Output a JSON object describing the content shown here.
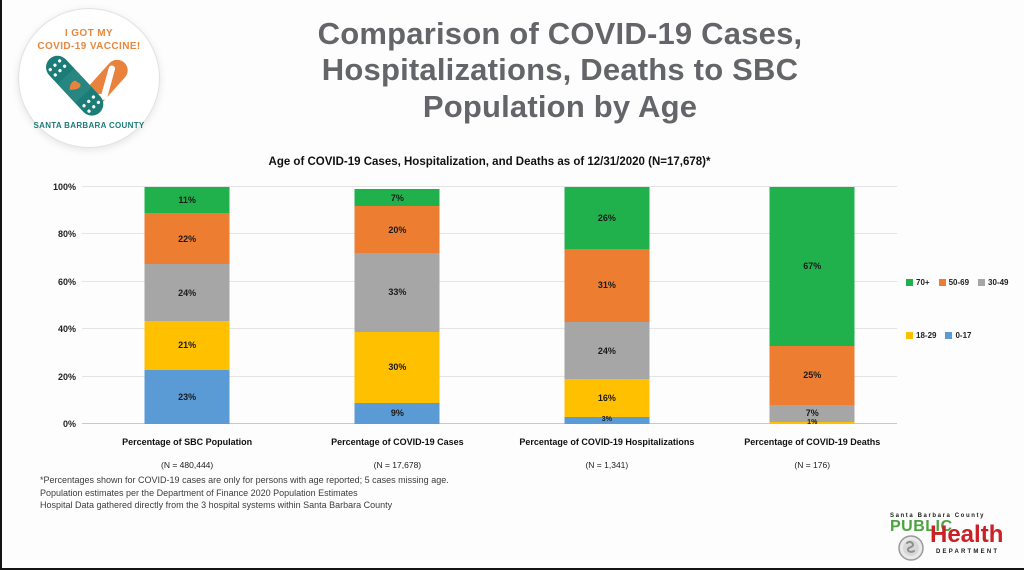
{
  "badge": {
    "top_text": "I GOT MY\nCOVID-19 VACCINE!",
    "bottom_text": "SANTA BARBARA COUNTY",
    "teal_color": "#1c7c77",
    "orange_color": "#e8823d"
  },
  "title": "Comparison of COVID-19 Cases,\nHospitalizations, Deaths to SBC\nPopulation by Age",
  "chart_data": {
    "type": "bar",
    "stacked": true,
    "percent": true,
    "title": "Age of COVID-19 Cases, Hospitalization, and Deaths as of 12/31/2020 (N=17,678)*",
    "categories": [
      "Percentage of SBC Population",
      "Percentage of COVID-19 Cases",
      "Percentage of COVID-19 Hospitalizations",
      "Percentage of COVID-19 Deaths"
    ],
    "category_ns": [
      "(N = 480,444)",
      "(N = 17,678)",
      "(N = 1,341)",
      "(N = 176)"
    ],
    "series": [
      {
        "name": "0-17",
        "color": "#5B9BD5",
        "values": [
          23,
          9,
          3,
          0
        ]
      },
      {
        "name": "18-29",
        "color": "#FFC000",
        "values": [
          21,
          30,
          16,
          1
        ]
      },
      {
        "name": "30-49",
        "color": "#A6A6A6",
        "values": [
          24,
          33,
          24,
          7
        ]
      },
      {
        "name": "50-69",
        "color": "#ED7D31",
        "values": [
          22,
          20,
          31,
          25
        ]
      },
      {
        "name": "70+",
        "color": "#21B14C",
        "values": [
          11,
          7,
          26,
          67
        ]
      }
    ],
    "y_ticks": [
      "0%",
      "20%",
      "40%",
      "60%",
      "80%",
      "100%"
    ],
    "ylim": [
      0,
      100
    ],
    "grid": true,
    "legend_position": "right",
    "legend_rows": [
      [
        "70+",
        "50-69",
        "30-49"
      ],
      [
        "18-29",
        "0-17"
      ]
    ]
  },
  "footnotes": [
    "*Percentages shown for COVID-19 cases are only for persons with age reported; 5 cases missing age.",
    "Population estimates per the Department of Finance 2020 Population Estimates",
    "Hospital Data gathered directly from the 3 hospital systems within Santa Barbara County"
  ],
  "ph_logo": {
    "county": "Santa Barbara County",
    "public": "PUBLIC",
    "health": "Health",
    "department": "DEPARTMENT",
    "green": "#4ca43f",
    "red": "#cc2027"
  }
}
